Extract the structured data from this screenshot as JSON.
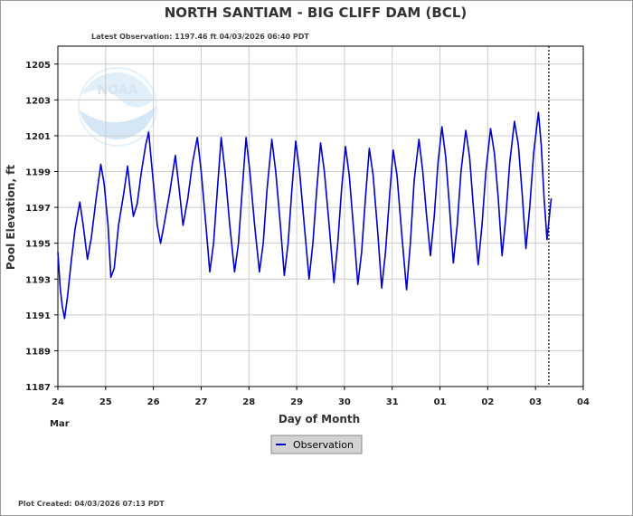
{
  "title": "NORTH SANTIAM - BIG CLIFF DAM  (BCL)",
  "latest_observation": "Latest Observation: 1197.46 ft 04/03/2026 06:40 PDT",
  "plot_created": "Plot Created: 04/03/2026 07:13 PDT",
  "legend": {
    "label": "Observation",
    "color": "#0000cc"
  },
  "watermark": "NOAA",
  "colors": {
    "series": "#0000cc",
    "grid": "#cccccc",
    "axis": "#000000"
  },
  "chart_data": {
    "type": "line",
    "title": "NORTH SANTIAM - BIG CLIFF DAM  (BCL)",
    "xlabel": "Day of Month",
    "ylabel": "Pool Elevation, ft",
    "xlim": [
      0,
      11
    ],
    "ylim": [
      1187,
      1206
    ],
    "grid": true,
    "legend_position": "bottom-center",
    "x_ticks": [
      {
        "x": 0,
        "label": "24"
      },
      {
        "x": 1,
        "label": "25"
      },
      {
        "x": 2,
        "label": "26"
      },
      {
        "x": 3,
        "label": "27"
      },
      {
        "x": 4,
        "label": "28"
      },
      {
        "x": 5,
        "label": "29"
      },
      {
        "x": 6,
        "label": "30"
      },
      {
        "x": 7,
        "label": "31"
      },
      {
        "x": 8,
        "label": "01"
      },
      {
        "x": 9,
        "label": "02"
      },
      {
        "x": 10,
        "label": "03"
      },
      {
        "x": 11,
        "label": "04"
      }
    ],
    "x_sublabel": "Mar",
    "y_ticks": [
      1187,
      1189,
      1191,
      1193,
      1195,
      1197,
      1199,
      1201,
      1203,
      1205
    ],
    "current_time_marker_x": 10.28,
    "series": [
      {
        "name": "Observation",
        "x_unit": "days since Mar 24 00:00",
        "points": [
          [
            0.0,
            1194.5
          ],
          [
            0.05,
            1192.5
          ],
          [
            0.09,
            1191.5
          ],
          [
            0.14,
            1190.8
          ],
          [
            0.2,
            1192.0
          ],
          [
            0.28,
            1194.0
          ],
          [
            0.36,
            1195.8
          ],
          [
            0.46,
            1197.3
          ],
          [
            0.53,
            1196.0
          ],
          [
            0.62,
            1194.1
          ],
          [
            0.7,
            1195.3
          ],
          [
            0.8,
            1197.5
          ],
          [
            0.9,
            1199.4
          ],
          [
            0.97,
            1198.3
          ],
          [
            1.05,
            1196.0
          ],
          [
            1.11,
            1193.1
          ],
          [
            1.18,
            1193.6
          ],
          [
            1.27,
            1196.0
          ],
          [
            1.38,
            1197.8
          ],
          [
            1.46,
            1199.3
          ],
          [
            1.52,
            1197.8
          ],
          [
            1.58,
            1196.5
          ],
          [
            1.66,
            1197.2
          ],
          [
            1.75,
            1199.0
          ],
          [
            1.84,
            1200.5
          ],
          [
            1.9,
            1201.2
          ],
          [
            1.96,
            1199.5
          ],
          [
            2.03,
            1197.5
          ],
          [
            2.08,
            1196.0
          ],
          [
            2.15,
            1195.0
          ],
          [
            2.22,
            1196.0
          ],
          [
            2.34,
            1197.8
          ],
          [
            2.46,
            1199.9
          ],
          [
            2.54,
            1198.0
          ],
          [
            2.62,
            1196.0
          ],
          [
            2.72,
            1197.5
          ],
          [
            2.82,
            1199.5
          ],
          [
            2.92,
            1200.9
          ],
          [
            3.0,
            1199.0
          ],
          [
            3.1,
            1196.0
          ],
          [
            3.18,
            1193.4
          ],
          [
            3.26,
            1195.0
          ],
          [
            3.34,
            1198.0
          ],
          [
            3.42,
            1200.9
          ],
          [
            3.5,
            1199.0
          ],
          [
            3.6,
            1196.0
          ],
          [
            3.7,
            1193.4
          ],
          [
            3.78,
            1195.0
          ],
          [
            3.86,
            1198.0
          ],
          [
            3.94,
            1200.9
          ],
          [
            4.02,
            1199.0
          ],
          [
            4.12,
            1196.0
          ],
          [
            4.22,
            1193.4
          ],
          [
            4.3,
            1195.0
          ],
          [
            4.38,
            1198.0
          ],
          [
            4.48,
            1200.8
          ],
          [
            4.56,
            1199.0
          ],
          [
            4.66,
            1196.0
          ],
          [
            4.74,
            1193.2
          ],
          [
            4.82,
            1195.0
          ],
          [
            4.9,
            1198.0
          ],
          [
            4.98,
            1200.7
          ],
          [
            5.06,
            1199.0
          ],
          [
            5.16,
            1196.0
          ],
          [
            5.26,
            1193.0
          ],
          [
            5.34,
            1195.0
          ],
          [
            5.42,
            1198.0
          ],
          [
            5.5,
            1200.6
          ],
          [
            5.58,
            1199.0
          ],
          [
            5.68,
            1196.0
          ],
          [
            5.78,
            1192.8
          ],
          [
            5.86,
            1195.0
          ],
          [
            5.94,
            1198.0
          ],
          [
            6.02,
            1200.4
          ],
          [
            6.1,
            1198.8
          ],
          [
            6.2,
            1195.5
          ],
          [
            6.28,
            1192.7
          ],
          [
            6.36,
            1194.5
          ],
          [
            6.44,
            1197.5
          ],
          [
            6.52,
            1200.3
          ],
          [
            6.6,
            1198.8
          ],
          [
            6.7,
            1195.5
          ],
          [
            6.78,
            1192.5
          ],
          [
            6.86,
            1194.5
          ],
          [
            6.94,
            1197.5
          ],
          [
            7.02,
            1200.2
          ],
          [
            7.1,
            1198.8
          ],
          [
            7.2,
            1195.5
          ],
          [
            7.3,
            1192.4
          ],
          [
            7.38,
            1195.0
          ],
          [
            7.46,
            1198.5
          ],
          [
            7.56,
            1200.8
          ],
          [
            7.64,
            1199.0
          ],
          [
            7.72,
            1196.5
          ],
          [
            7.8,
            1194.3
          ],
          [
            7.88,
            1196.5
          ],
          [
            7.96,
            1199.5
          ],
          [
            8.04,
            1201.5
          ],
          [
            8.12,
            1199.8
          ],
          [
            8.2,
            1197.0
          ],
          [
            8.28,
            1193.9
          ],
          [
            8.36,
            1196.0
          ],
          [
            8.44,
            1199.0
          ],
          [
            8.54,
            1201.3
          ],
          [
            8.62,
            1199.8
          ],
          [
            8.7,
            1197.0
          ],
          [
            8.8,
            1193.8
          ],
          [
            8.88,
            1196.0
          ],
          [
            8.96,
            1199.0
          ],
          [
            9.06,
            1201.4
          ],
          [
            9.14,
            1200.0
          ],
          [
            9.22,
            1197.5
          ],
          [
            9.3,
            1194.3
          ],
          [
            9.38,
            1196.5
          ],
          [
            9.46,
            1199.5
          ],
          [
            9.56,
            1201.8
          ],
          [
            9.64,
            1200.5
          ],
          [
            9.72,
            1197.8
          ],
          [
            9.8,
            1194.7
          ],
          [
            9.88,
            1197.0
          ],
          [
            9.96,
            1200.0
          ],
          [
            10.06,
            1202.3
          ],
          [
            10.12,
            1200.5
          ],
          [
            10.18,
            1197.5
          ],
          [
            10.24,
            1195.2
          ],
          [
            10.29,
            1196.5
          ],
          [
            10.33,
            1197.5
          ]
        ]
      }
    ]
  }
}
